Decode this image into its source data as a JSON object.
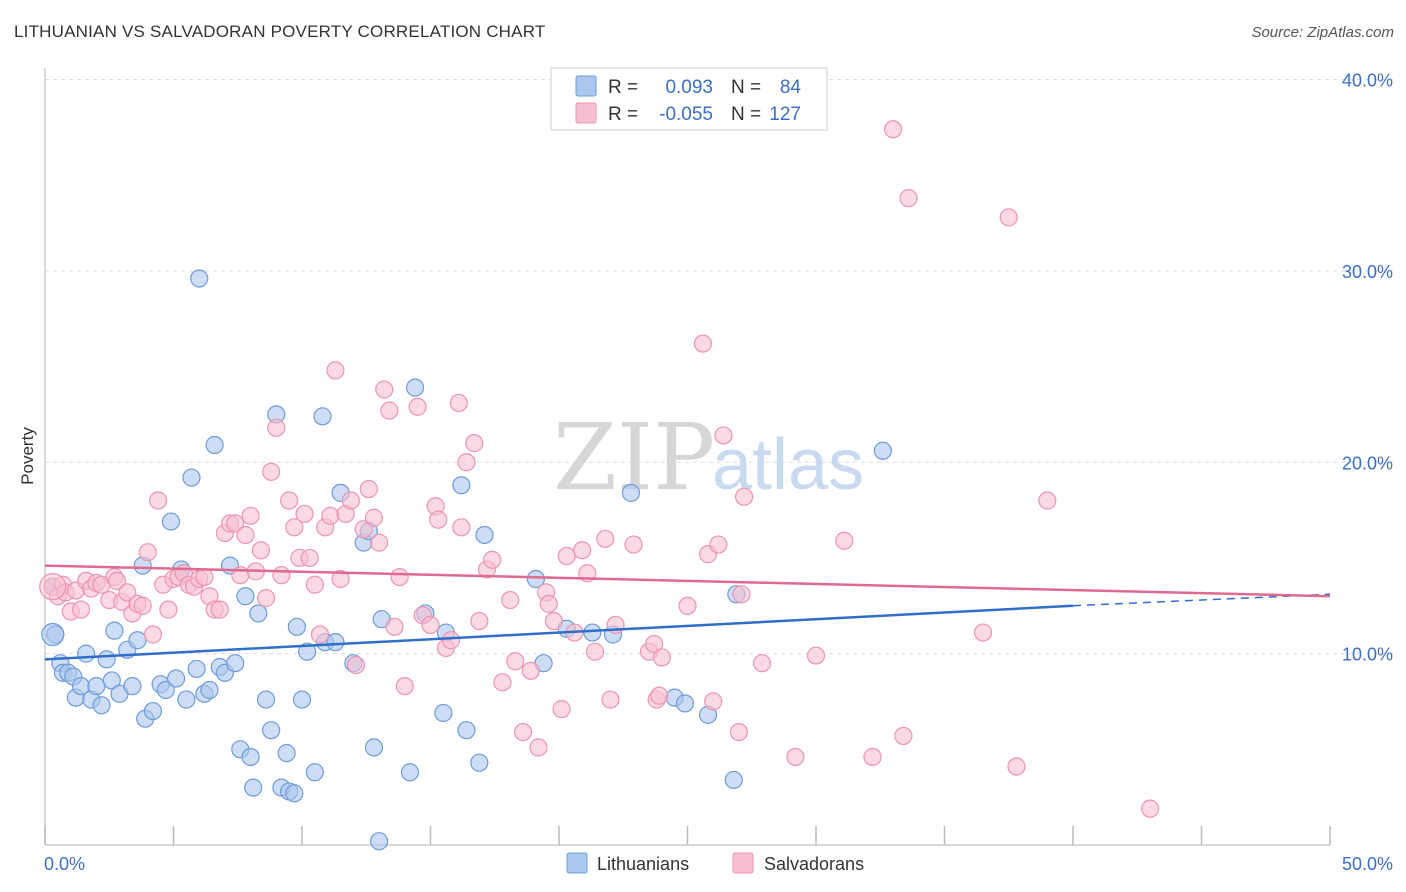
{
  "header": {
    "title": "LITHUANIAN VS SALVADORAN POVERTY CORRELATION CHART",
    "source": "Source: ZipAtlas.com"
  },
  "watermark": {
    "zip": "ZIP",
    "atlas": "atlas"
  },
  "colors": {
    "lithuanians_fill": "#aac7ee",
    "lithuanians_stroke": "#6f9bd8",
    "lithuanians_line": "#2f6fca",
    "salvadorans_fill": "#f6bfd0",
    "salvadorans_stroke": "#ec94b2",
    "salvadorans_line": "#e0698f",
    "tick_text": "#3b6fc4",
    "grid": "#dddddd"
  },
  "legend": {
    "rows": [
      {
        "r_label": "R =",
        "r_value": "0.093",
        "n_label": "N =",
        "n_value": "84"
      },
      {
        "r_label": "R =",
        "r_value": "-0.055",
        "n_label": "N =",
        "n_value": "127"
      }
    ]
  },
  "bottom_legend": [
    "Lithuanians",
    "Salvadorans"
  ],
  "chart_data": {
    "type": "scatter",
    "title": "LITHUANIAN VS SALVADORAN POVERTY CORRELATION CHART",
    "xlabel": "",
    "ylabel": "Poverty",
    "xlim": [
      0,
      50
    ],
    "ylim": [
      0,
      40
    ],
    "x_tick_labels": [
      "0.0%",
      "50.0%"
    ],
    "y_ticks": [
      10,
      20,
      30,
      40
    ],
    "y_tick_labels": [
      "10.0%",
      "20.0%",
      "30.0%",
      "40.0%"
    ],
    "grid": true,
    "legend_position": "top-center",
    "series": [
      {
        "name": "Lithuanians",
        "r": 0.093,
        "n": 84,
        "trend": {
          "x": [
            0,
            40.0
          ],
          "y": [
            9.7,
            12.5
          ],
          "dashed_to": [
            50,
            13.1
          ]
        },
        "points": [
          [
            0.3,
            13.5
          ],
          [
            0.4,
            11.0
          ],
          [
            0.6,
            9.5
          ],
          [
            0.7,
            9.0
          ],
          [
            0.9,
            9.0
          ],
          [
            1.1,
            8.8
          ],
          [
            1.2,
            7.7
          ],
          [
            1.4,
            8.3
          ],
          [
            1.6,
            10.0
          ],
          [
            1.8,
            7.6
          ],
          [
            2.0,
            8.3
          ],
          [
            2.2,
            7.3
          ],
          [
            2.4,
            9.7
          ],
          [
            2.6,
            8.6
          ],
          [
            2.7,
            11.2
          ],
          [
            2.9,
            7.9
          ],
          [
            3.2,
            10.2
          ],
          [
            3.4,
            8.3
          ],
          [
            3.6,
            10.7
          ],
          [
            3.8,
            14.6
          ],
          [
            3.9,
            6.6
          ],
          [
            4.2,
            7.0
          ],
          [
            4.5,
            8.4
          ],
          [
            4.7,
            8.1
          ],
          [
            4.9,
            16.9
          ],
          [
            5.1,
            8.7
          ],
          [
            5.3,
            14.4
          ],
          [
            5.5,
            7.6
          ],
          [
            5.7,
            19.2
          ],
          [
            5.9,
            9.2
          ],
          [
            6.0,
            29.6
          ],
          [
            6.2,
            7.9
          ],
          [
            6.4,
            8.1
          ],
          [
            6.6,
            20.9
          ],
          [
            6.8,
            9.3
          ],
          [
            7.0,
            9.0
          ],
          [
            7.2,
            14.6
          ],
          [
            7.4,
            9.5
          ],
          [
            7.6,
            5.0
          ],
          [
            7.8,
            13.0
          ],
          [
            8.0,
            4.6
          ],
          [
            8.1,
            3.0
          ],
          [
            8.3,
            12.1
          ],
          [
            8.6,
            7.6
          ],
          [
            8.8,
            6.0
          ],
          [
            9.0,
            22.5
          ],
          [
            9.2,
            3.0
          ],
          [
            9.4,
            4.8
          ],
          [
            9.5,
            2.8
          ],
          [
            9.7,
            2.7
          ],
          [
            9.8,
            11.4
          ],
          [
            10.0,
            7.6
          ],
          [
            10.2,
            10.1
          ],
          [
            10.5,
            3.8
          ],
          [
            10.8,
            22.4
          ],
          [
            10.9,
            10.6
          ],
          [
            11.3,
            10.6
          ],
          [
            11.5,
            18.4
          ],
          [
            12.0,
            9.5
          ],
          [
            12.4,
            15.8
          ],
          [
            12.6,
            16.4
          ],
          [
            12.8,
            5.1
          ],
          [
            13.0,
            0.2
          ],
          [
            13.1,
            11.8
          ],
          [
            14.2,
            3.8
          ],
          [
            14.4,
            23.9
          ],
          [
            14.8,
            12.1
          ],
          [
            15.5,
            6.9
          ],
          [
            15.6,
            11.1
          ],
          [
            16.2,
            18.8
          ],
          [
            16.4,
            6.0
          ],
          [
            16.9,
            4.3
          ],
          [
            17.1,
            16.2
          ],
          [
            19.1,
            13.9
          ],
          [
            19.4,
            9.5
          ],
          [
            20.3,
            11.3
          ],
          [
            21.3,
            11.1
          ],
          [
            22.1,
            11.0
          ],
          [
            22.8,
            18.4
          ],
          [
            24.5,
            7.7
          ],
          [
            24.9,
            7.4
          ],
          [
            25.8,
            6.8
          ],
          [
            26.8,
            3.4
          ],
          [
            26.9,
            13.1
          ],
          [
            32.6,
            20.6
          ]
        ]
      },
      {
        "name": "Salvadorans",
        "r": -0.055,
        "n": 127,
        "trend": {
          "x": [
            0,
            50
          ],
          "y": [
            14.6,
            13.0
          ]
        },
        "points": [
          [
            0.3,
            13.5
          ],
          [
            0.5,
            13.0
          ],
          [
            0.7,
            13.6
          ],
          [
            0.8,
            13.2
          ],
          [
            1.0,
            12.2
          ],
          [
            1.2,
            13.3
          ],
          [
            1.4,
            12.3
          ],
          [
            1.6,
            13.8
          ],
          [
            1.8,
            13.4
          ],
          [
            2.0,
            13.7
          ],
          [
            2.2,
            13.6
          ],
          [
            2.5,
            12.8
          ],
          [
            2.7,
            14.0
          ],
          [
            2.8,
            13.8
          ],
          [
            3.0,
            12.7
          ],
          [
            3.2,
            13.2
          ],
          [
            3.4,
            12.1
          ],
          [
            3.6,
            12.6
          ],
          [
            3.8,
            12.5
          ],
          [
            4.0,
            15.3
          ],
          [
            4.2,
            11.0
          ],
          [
            4.4,
            18.0
          ],
          [
            4.6,
            13.6
          ],
          [
            4.8,
            12.3
          ],
          [
            5.0,
            13.9
          ],
          [
            5.2,
            14.0
          ],
          [
            5.4,
            14.2
          ],
          [
            5.6,
            13.6
          ],
          [
            5.8,
            13.5
          ],
          [
            6.0,
            13.9
          ],
          [
            6.2,
            14.0
          ],
          [
            6.4,
            13.0
          ],
          [
            6.6,
            12.3
          ],
          [
            6.8,
            12.3
          ],
          [
            7.0,
            16.3
          ],
          [
            7.2,
            16.8
          ],
          [
            7.4,
            16.8
          ],
          [
            7.6,
            14.1
          ],
          [
            7.8,
            16.2
          ],
          [
            8.0,
            17.2
          ],
          [
            8.2,
            14.3
          ],
          [
            8.4,
            15.4
          ],
          [
            8.6,
            12.9
          ],
          [
            8.8,
            19.5
          ],
          [
            9.0,
            21.8
          ],
          [
            9.2,
            14.1
          ],
          [
            9.5,
            18.0
          ],
          [
            9.7,
            16.6
          ],
          [
            9.9,
            15.0
          ],
          [
            10.1,
            17.3
          ],
          [
            10.3,
            15.0
          ],
          [
            10.5,
            13.6
          ],
          [
            10.7,
            11.0
          ],
          [
            10.9,
            16.6
          ],
          [
            11.1,
            17.2
          ],
          [
            11.3,
            24.8
          ],
          [
            11.5,
            13.9
          ],
          [
            11.7,
            17.3
          ],
          [
            11.9,
            18.0
          ],
          [
            12.1,
            9.4
          ],
          [
            12.4,
            16.5
          ],
          [
            12.6,
            18.6
          ],
          [
            12.8,
            17.1
          ],
          [
            13.0,
            15.8
          ],
          [
            13.2,
            23.8
          ],
          [
            13.4,
            22.7
          ],
          [
            13.6,
            11.4
          ],
          [
            13.8,
            14.0
          ],
          [
            14.0,
            8.3
          ],
          [
            14.5,
            22.9
          ],
          [
            14.7,
            12.0
          ],
          [
            15.0,
            11.5
          ],
          [
            15.2,
            17.7
          ],
          [
            15.3,
            17.0
          ],
          [
            15.6,
            10.3
          ],
          [
            15.8,
            10.7
          ],
          [
            16.1,
            23.1
          ],
          [
            16.2,
            16.6
          ],
          [
            16.4,
            20.0
          ],
          [
            16.7,
            21.0
          ],
          [
            16.9,
            11.7
          ],
          [
            17.2,
            14.4
          ],
          [
            17.4,
            14.9
          ],
          [
            17.8,
            8.5
          ],
          [
            18.1,
            12.8
          ],
          [
            18.3,
            9.6
          ],
          [
            18.6,
            5.9
          ],
          [
            18.9,
            9.1
          ],
          [
            19.2,
            5.1
          ],
          [
            19.5,
            13.2
          ],
          [
            19.6,
            12.6
          ],
          [
            19.8,
            11.7
          ],
          [
            20.1,
            7.1
          ],
          [
            20.3,
            15.1
          ],
          [
            20.6,
            11.1
          ],
          [
            20.9,
            15.4
          ],
          [
            21.1,
            14.2
          ],
          [
            21.4,
            10.1
          ],
          [
            21.8,
            16.0
          ],
          [
            22.0,
            7.6
          ],
          [
            22.2,
            11.5
          ],
          [
            22.9,
            15.7
          ],
          [
            23.5,
            10.1
          ],
          [
            23.7,
            10.5
          ],
          [
            23.8,
            7.6
          ],
          [
            23.9,
            7.8
          ],
          [
            24.0,
            9.8
          ],
          [
            25.0,
            12.5
          ],
          [
            25.6,
            26.2
          ],
          [
            25.8,
            15.2
          ],
          [
            26.0,
            7.5
          ],
          [
            26.2,
            15.7
          ],
          [
            26.4,
            21.4
          ],
          [
            27.0,
            5.9
          ],
          [
            27.1,
            13.1
          ],
          [
            27.2,
            18.2
          ],
          [
            27.9,
            9.5
          ],
          [
            29.2,
            4.6
          ],
          [
            30.0,
            9.9
          ],
          [
            31.1,
            15.9
          ],
          [
            32.2,
            4.6
          ],
          [
            33.4,
            5.7
          ],
          [
            33.6,
            33.8
          ],
          [
            36.5,
            11.1
          ],
          [
            37.5,
            32.8
          ],
          [
            37.8,
            4.1
          ],
          [
            39.0,
            18.0
          ],
          [
            43.0,
            1.9
          ],
          [
            33.0,
            37.4
          ]
        ]
      }
    ]
  }
}
